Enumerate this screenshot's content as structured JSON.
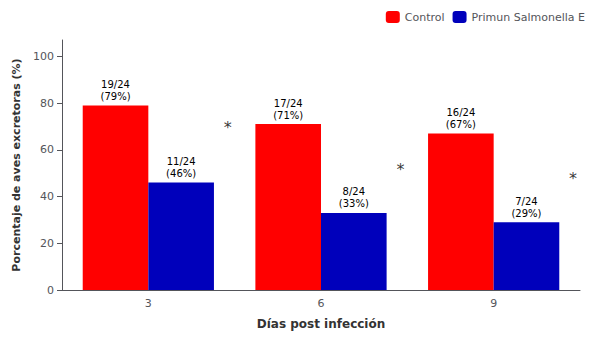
{
  "chart_data": {
    "type": "bar",
    "xlabel": "Días post infección",
    "ylabel": "Porcentaje de aves excretoras (%)",
    "categories": [
      "3",
      "6",
      "9"
    ],
    "series": [
      {
        "name": "Control",
        "color": "#FF0000",
        "values": [
          79,
          71,
          67
        ],
        "value_labels": [
          "19/24\n(79%)",
          "17/24\n(71%)",
          "16/24\n(67%)"
        ]
      },
      {
        "name": "Primun Salmonella E",
        "color": "#0000BB",
        "values": [
          46,
          33,
          29
        ],
        "value_labels": [
          "11/24\n(46%)",
          "8/24\n(33%)",
          "7/24\n(29%)"
        ]
      }
    ],
    "ylim": [
      0,
      107
    ],
    "yticks": [
      0,
      20,
      40,
      60,
      80,
      100
    ],
    "grid": false,
    "legend": "upper right",
    "data_labels": true,
    "annotations": [
      {
        "text": "*",
        "category": "3",
        "y": 68
      },
      {
        "text": "*",
        "category": "6",
        "y": 50
      },
      {
        "text": "*",
        "category": "9",
        "y": 46
      }
    ]
  }
}
